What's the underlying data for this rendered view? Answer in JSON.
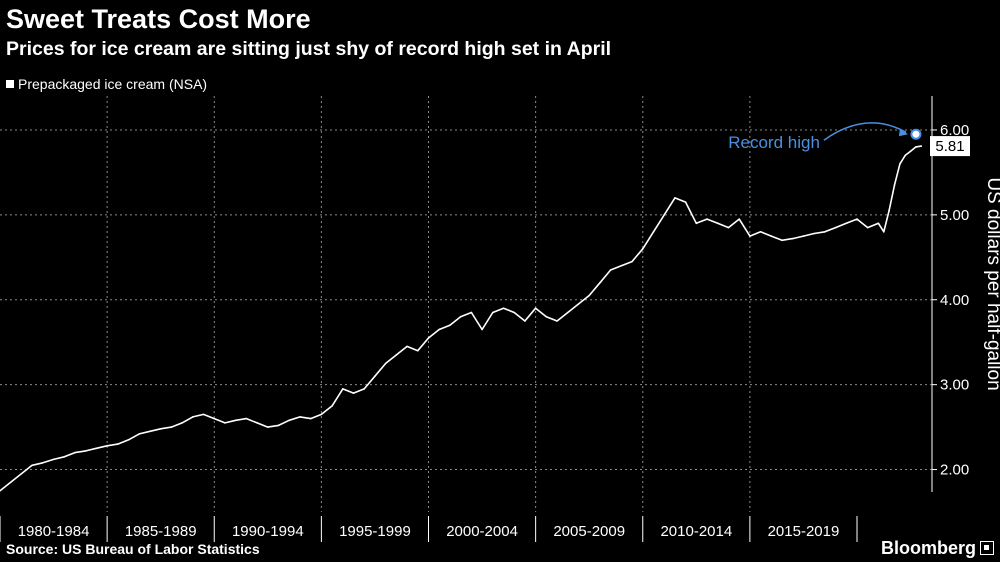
{
  "title": "Sweet Treats Cost More",
  "subtitle": "Prices for ice cream are sitting just shy of record high set in April",
  "legend_label": "Prepackaged ice cream (NSA)",
  "source": "Source: US Bureau of Labor Statistics",
  "brand": "Bloomberg",
  "colors": {
    "background": "#000000",
    "line": "#ffffff",
    "grid": "#8a8a8a",
    "annotation": "#4a90e2"
  },
  "chart_data": {
    "type": "line",
    "title": "Sweet Treats Cost More",
    "subtitle": "Prices for ice cream are sitting just shy of record high set in April",
    "ylabel": "US dollars per half-gallon",
    "ylim": [
      1.5,
      6.4
    ],
    "xlim": [
      1980,
      2023.5
    ],
    "y_ticks": [
      "2.00",
      "3.00",
      "4.00",
      "5.00",
      "6.00"
    ],
    "y_tick_values": [
      2,
      3,
      4,
      5,
      6
    ],
    "x_tick_labels": [
      "1980-1984",
      "1985-1989",
      "1990-1994",
      "1995-1999",
      "2000-2004",
      "2005-2009",
      "2010-2014",
      "2015-2019"
    ],
    "x_tick_starts": [
      1980,
      1985,
      1990,
      1995,
      2000,
      2005,
      2010,
      2015
    ],
    "x_tick_span": 5,
    "grid": true,
    "legend_position": "top-left",
    "series": [
      {
        "name": "Prepackaged ice cream (NSA)",
        "x": [
          1980.0,
          1980.5,
          1981.0,
          1981.5,
          1982.0,
          1982.5,
          1983.0,
          1983.5,
          1984.0,
          1984.5,
          1985.0,
          1985.5,
          1986.0,
          1986.5,
          1987.0,
          1987.5,
          1988.0,
          1988.5,
          1989.0,
          1989.5,
          1990.0,
          1990.5,
          1991.0,
          1991.5,
          1992.0,
          1992.5,
          1993.0,
          1993.5,
          1994.0,
          1994.5,
          1995.0,
          1995.5,
          1996.0,
          1996.5,
          1997.0,
          1997.5,
          1998.0,
          1998.5,
          1999.0,
          1999.5,
          2000.0,
          2000.5,
          2001.0,
          2001.5,
          2002.0,
          2002.5,
          2003.0,
          2003.5,
          2004.0,
          2004.5,
          2005.0,
          2005.5,
          2006.0,
          2006.5,
          2007.0,
          2007.5,
          2008.0,
          2008.5,
          2009.0,
          2009.5,
          2010.0,
          2010.5,
          2011.0,
          2011.5,
          2012.0,
          2012.5,
          2013.0,
          2013.5,
          2014.0,
          2014.5,
          2015.0,
          2015.5,
          2016.0,
          2016.5,
          2017.0,
          2017.5,
          2018.0,
          2018.5,
          2019.0,
          2019.5,
          2020.0,
          2020.5,
          2021.0,
          2021.25,
          2021.5,
          2021.75,
          2022.0,
          2022.25,
          2022.5,
          2022.75,
          2023.0
        ],
        "values": [
          1.75,
          1.85,
          1.95,
          2.05,
          2.08,
          2.12,
          2.15,
          2.2,
          2.22,
          2.25,
          2.28,
          2.3,
          2.35,
          2.42,
          2.45,
          2.48,
          2.5,
          2.55,
          2.62,
          2.65,
          2.6,
          2.55,
          2.58,
          2.6,
          2.55,
          2.5,
          2.52,
          2.58,
          2.62,
          2.6,
          2.65,
          2.75,
          2.95,
          2.9,
          2.95,
          3.1,
          3.25,
          3.35,
          3.45,
          3.4,
          3.55,
          3.65,
          3.7,
          3.8,
          3.85,
          3.65,
          3.85,
          3.9,
          3.85,
          3.75,
          3.9,
          3.8,
          3.75,
          3.85,
          3.95,
          4.05,
          4.2,
          4.35,
          4.4,
          4.45,
          4.6,
          4.8,
          5.0,
          5.2,
          5.15,
          4.9,
          4.95,
          4.9,
          4.85,
          4.95,
          4.75,
          4.8,
          4.75,
          4.7,
          4.72,
          4.75,
          4.78,
          4.8,
          4.85,
          4.9,
          4.95,
          4.85,
          4.9,
          4.8,
          5.05,
          5.35,
          5.6,
          5.7,
          5.75,
          5.8,
          5.81
        ]
      }
    ],
    "annotations": {
      "record_label": "Record high",
      "record_point": {
        "x": 2022.75,
        "y": 5.95
      },
      "last_value_label": "5.81"
    }
  }
}
